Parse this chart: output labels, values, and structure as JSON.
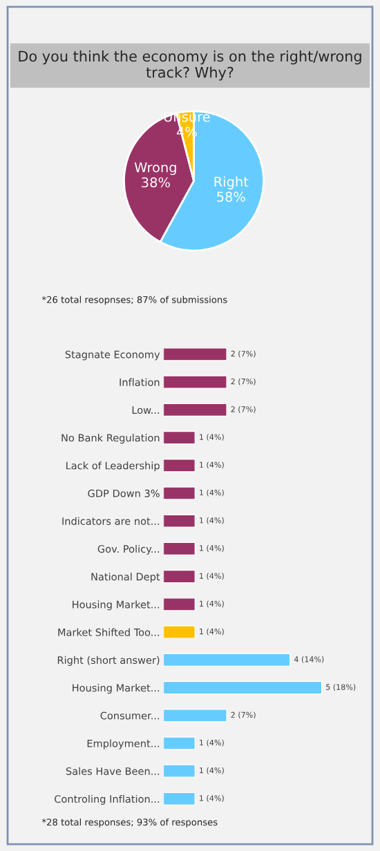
{
  "chart_data": [
    {
      "type": "pie",
      "title": "Do you think the economy is on the right/wrong track? Why?",
      "categories": [
        "Right",
        "Wrong",
        "Unsure"
      ],
      "values": [
        58,
        38,
        4
      ],
      "colors": [
        "#66ccff",
        "#993366",
        "#ffc000"
      ],
      "value_labels": [
        "58%",
        "38%",
        "4%"
      ],
      "annotations": [
        "*26 total resopnses; 87% of submissions"
      ]
    },
    {
      "type": "bar",
      "orientation": "horizontal",
      "categories": [
        "Stagnate Economy",
        "Inflation",
        "Low...",
        "No Bank Regulation",
        "Lack of Leadership",
        "GDP Down 3%",
        "Indicators are not...",
        "Gov. Policy...",
        "National Dept",
        "Housing Market...",
        "Market Shifted Too...",
        "Right (short answer)",
        "Housing Market...",
        "Consumer...",
        "Employment...",
        "Sales Have Been...",
        "Controling Inflation..."
      ],
      "values": [
        2,
        2,
        2,
        1,
        1,
        1,
        1,
        1,
        1,
        1,
        1,
        4,
        5,
        2,
        1,
        1,
        1
      ],
      "colors": [
        "#993366",
        "#993366",
        "#993366",
        "#993366",
        "#993366",
        "#993366",
        "#993366",
        "#993366",
        "#993366",
        "#993366",
        "#ffc000",
        "#66ccff",
        "#66ccff",
        "#66ccff",
        "#66ccff",
        "#66ccff",
        "#66ccff"
      ],
      "value_labels": [
        "2 (7%)",
        "2 (7%)",
        "2 (7%)",
        "1 (4%)",
        "1 (4%)",
        "1 (4%)",
        "1 (4%)",
        "1 (4%)",
        "1 (4%)",
        "1 (4%)",
        "1 (4%)",
        "4 (14%)",
        "5 (18%)",
        "2 (7%)",
        "1 (4%)",
        "1 (4%)",
        "1 (4%)"
      ],
      "annotations": [
        "*28 total responses; 93% of responses"
      ]
    }
  ]
}
